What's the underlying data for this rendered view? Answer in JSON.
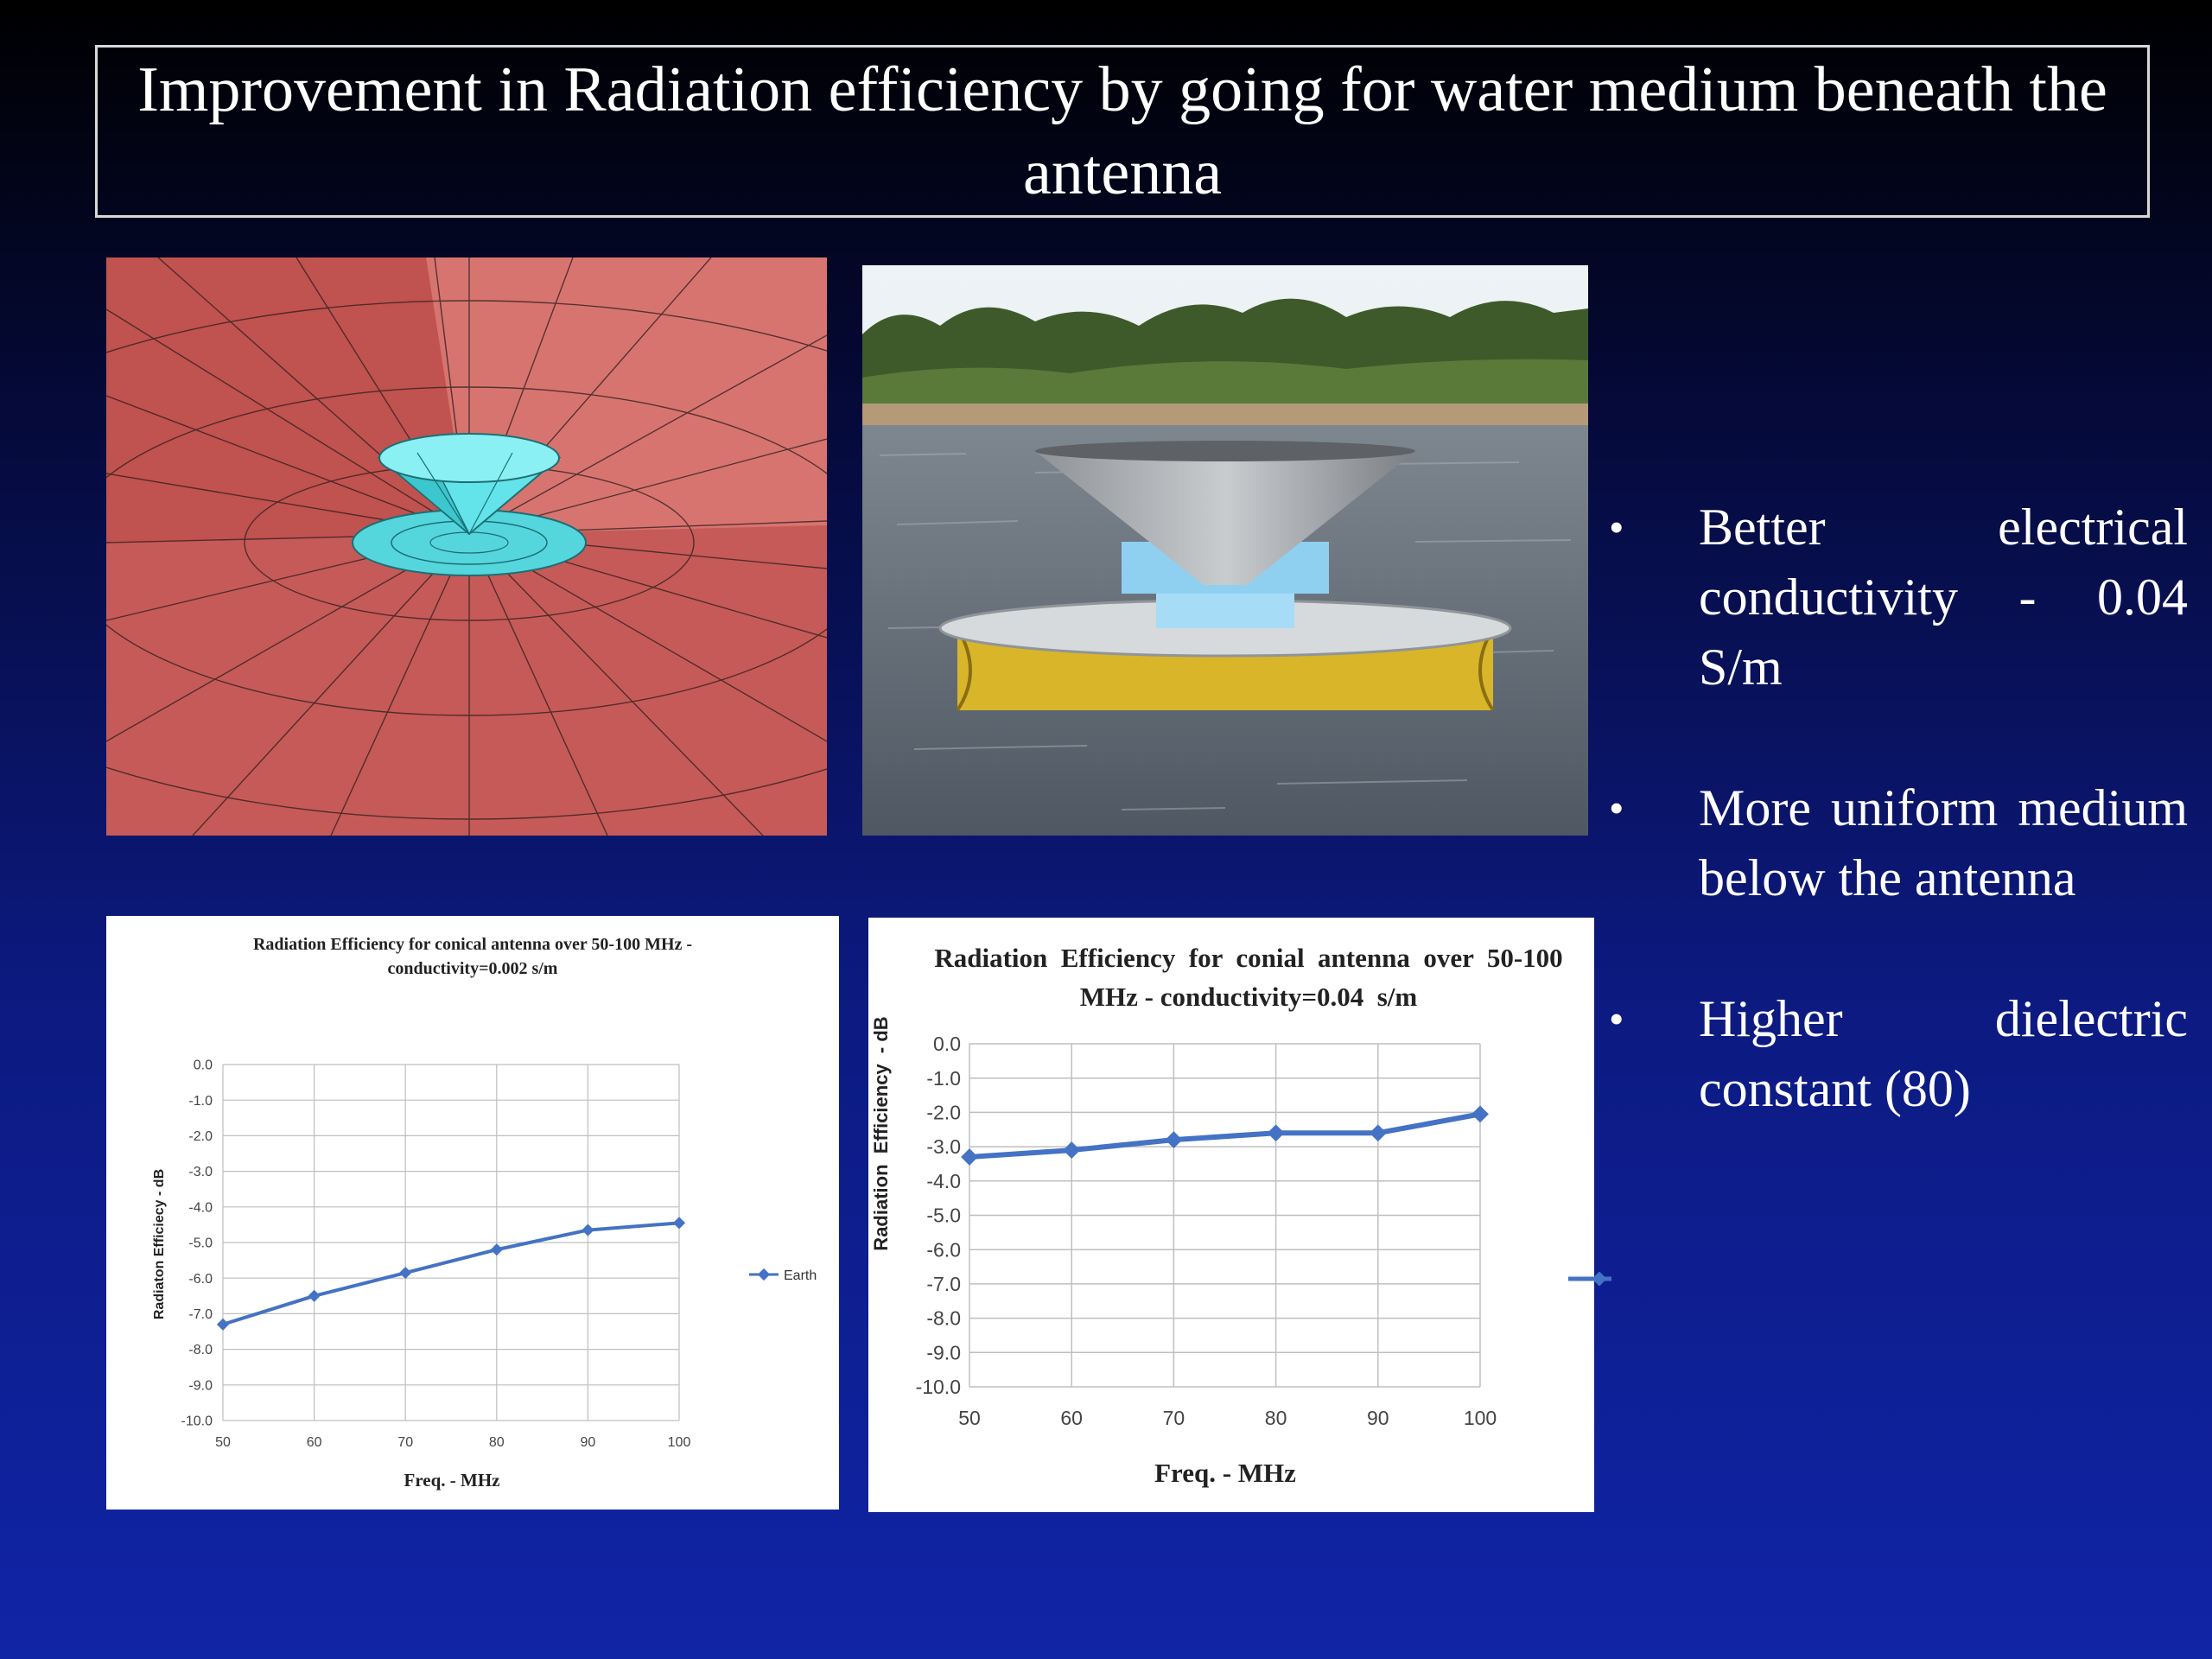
{
  "slide": {
    "title": "Improvement in Radiation efficiency by going for water medium beneath the antenna",
    "bullets": [
      {
        "text": "Better electrical conductivity - 0.04 S/m"
      },
      {
        "text": "More uniform medium below the antenna"
      },
      {
        "text": "Higher dielectric constant (80)"
      }
    ],
    "colors": {
      "background_top": "#000000",
      "background_bottom": "#1024a6",
      "series_line": "#4472c4",
      "ground_plane": "#c8605c",
      "antenna_model": "#5ce0e6"
    }
  },
  "images": {
    "cad_model": {
      "icon": "conical-antenna-model"
    },
    "field_photo": {
      "icon": "antenna-on-water-photo"
    }
  },
  "chart_data": [
    {
      "type": "line",
      "title": "Radiation Efficiency for conical antenna over 50-100 MHz - conductivity=0.002  s/m",
      "title_lines": [
        "Radiation Efficiency for conical antenna over 50-100 MHz -",
        "conductivity=0.002  s/m"
      ],
      "xlabel": "Freq. - MHz",
      "ylabel": "Radiaton Efficiecy - dB",
      "x": [
        50,
        60,
        70,
        80,
        90,
        100
      ],
      "x_tick_labels": [
        "50",
        "60",
        "70",
        "80",
        "90",
        "100"
      ],
      "y_tick_labels": [
        "0.0",
        "-1.0",
        "-2.0",
        "-3.0",
        "-4.0",
        "-5.0",
        "-6.0",
        "-7.0",
        "-8.0",
        "-9.0",
        "-10.0"
      ],
      "ylim": [
        -10,
        0
      ],
      "xlim": [
        50,
        100
      ],
      "grid": true,
      "legend_position": "right",
      "series": [
        {
          "name": "Earth",
          "values": [
            -7.3,
            -6.5,
            -5.85,
            -5.2,
            -4.65,
            -4.45
          ]
        }
      ]
    },
    {
      "type": "line",
      "title": "Radiation Efficiency for conial antenna over 50-100 MHz - conductivity=0.04  s/m",
      "title_lines": [
        "Radiation  Efficiency  for  conial  antenna  over  50-100",
        "MHz - conductivity=0.04  s/m"
      ],
      "xlabel": "Freq. - MHz",
      "ylabel": "Radiation  Efficiency  - dB",
      "x": [
        50,
        60,
        70,
        80,
        90,
        100
      ],
      "x_tick_labels": [
        "50",
        "60",
        "70",
        "80",
        "90",
        "100"
      ],
      "y_tick_labels": [
        "0.0",
        "-1.0",
        "-2.0",
        "-3.0",
        "-4.0",
        "-5.0",
        "-6.0",
        "-7.0",
        "-8.0",
        "-9.0",
        "-10.0"
      ],
      "ylim": [
        -10,
        0
      ],
      "xlim": [
        50,
        100
      ],
      "grid": true,
      "legend_position": "right (cropped)",
      "series": [
        {
          "values": [
            -3.3,
            -3.1,
            -2.8,
            -2.6,
            -2.6,
            -2.05
          ]
        }
      ]
    }
  ]
}
